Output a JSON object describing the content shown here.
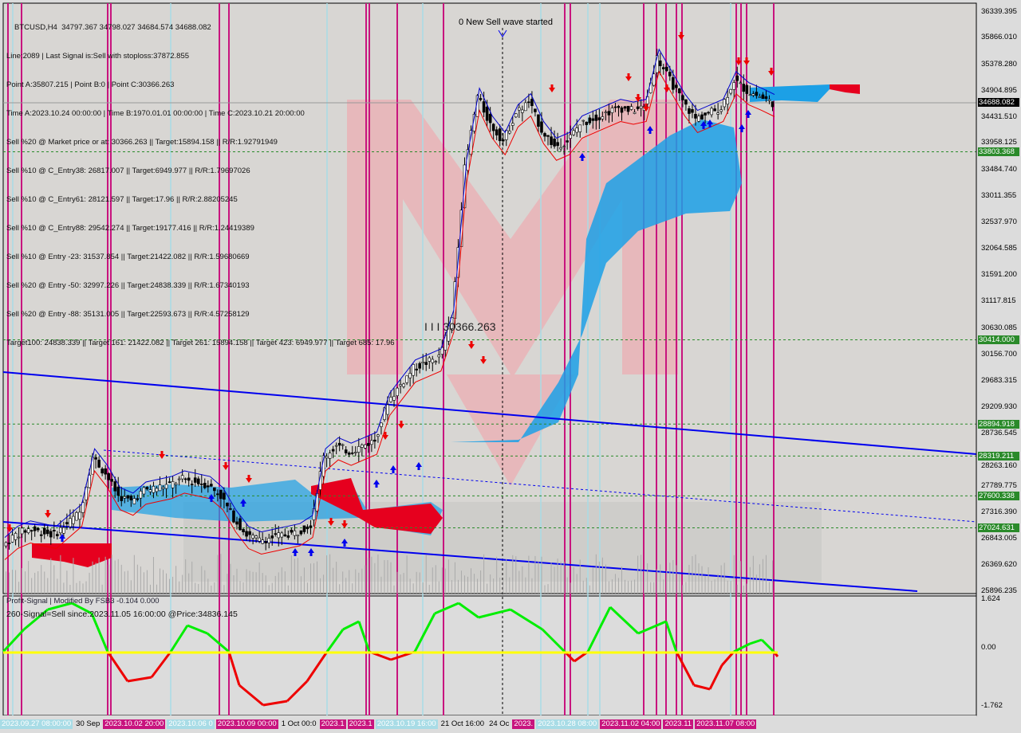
{
  "header": {
    "symbol_line": "BTCUSD,H4  34797.367 34798.027 34684.574 34688.082",
    "lines": [
      "Line:2089 | Last Signal is:Sell with stoploss:37872.855",
      "Point A:35807.215 | Point B:0 | Point C:30366.263",
      "Time A:2023.10.24 00:00:00 | Time B:1970.01.01 00:00:00 | Time C:2023.10.21 20:00:00",
      "Sell %20 @ Market price or at: 30366.263 || Target:15894.158 || R/R:1.92791949",
      "Sell %10 @ C_Entry38: 26817.007 || Target:6949.977 || R/R:1.79697026",
      "Sell %10 @ C_Entry61: 28121.597 || Target:17.96 || R/R:2.88205245",
      "Sell %10 @ C_Entry88: 29542.274 || Target:19177.416 || R/R:1.24419389",
      "Sell %10 @ Entry -23: 31537.854 || Target:21422.082 || R/R:1.59680669",
      "Sell %20 @ Entry -50: 32997.226 || Target:24838.339 || R/R:1.67340193",
      "Sell %20 @ Entry -88: 35131.005 || Target:22593.673 || R/R:4.57258129",
      "Target100: 24838.339 || Target 161: 21422.082 || Target 261: 15894.158 || Target 423: 6949.977 || Target 685: 17.96"
    ]
  },
  "annotations": {
    "wave": "0 New Sell wave started",
    "point_c": "I I I 30366.263"
  },
  "price_axis": [
    "36339.395",
    "35866.010",
    "35378.280",
    "34904.895",
    "34431.510",
    "33958.125",
    "33484.740",
    "33011.355",
    "32537.970",
    "32064.585",
    "31591.200",
    "31117.815",
    "30630.085",
    "30156.700",
    "29683.315",
    "29209.930",
    "28736.545",
    "28263.160",
    "27789.775",
    "27316.390",
    "26843.005",
    "26369.620",
    "25896.235"
  ],
  "current_price": "34688.082",
  "levels": [
    "33803.368",
    "30414.000",
    "28894.918",
    "28319.211",
    "27600.338",
    "27024.631"
  ],
  "indicator": {
    "title": "Profit-Signal | Modified By FSB3 -0.104 0.000",
    "signal": "260-Signal=Sell since:2023.11.05 16:00:00 @Price:34836.145",
    "axis": [
      "1.624",
      "0.00",
      "-1.762"
    ]
  },
  "time_axis": [
    {
      "t": "2023.09.27 08:00:00",
      "bg": "#a8dce6",
      "c": "#fff"
    },
    {
      "t": "30 Sep",
      "bg": "",
      "c": "#000"
    },
    {
      "t": "2023.10.02 20:00",
      "bg": "#c8147e",
      "c": "#fff"
    },
    {
      "t": "2023.10.06 0",
      "bg": "#a8dce6",
      "c": "#fff"
    },
    {
      "t": "2023.10.09 00:00",
      "bg": "#c8147e",
      "c": "#fff"
    },
    {
      "t": "1 Oct 00:0",
      "bg": "",
      "c": "#000"
    },
    {
      "t": "2023.1",
      "bg": "#c8147e",
      "c": "#fff"
    },
    {
      "t": "2023.1",
      "bg": "#c8147e",
      "c": "#fff"
    },
    {
      "t": "2023.10.19 16:00",
      "bg": "#a8dce6",
      "c": "#fff"
    },
    {
      "t": "21 Oct 16:00",
      "bg": "",
      "c": "#000"
    },
    {
      "t": "24 Oc",
      "bg": "",
      "c": "#000"
    },
    {
      "t": "2023.",
      "bg": "#c8147e",
      "c": "#fff"
    },
    {
      "t": "2023.10.28 08:00",
      "bg": "#a8dce6",
      "c": "#fff"
    },
    {
      "t": "2023.11.02 04:00",
      "bg": "#c8147e",
      "c": "#fff"
    },
    {
      "t": "2023.11",
      "bg": "#c8147e",
      "c": "#fff"
    },
    {
      "t": "2023.11.07 08:00",
      "bg": "#c8147e",
      "c": "#fff"
    }
  ],
  "colors": {
    "bg": "#dcdcdc",
    "magenta": "#c8147e",
    "cyan": "#a8dce6",
    "level": "#2a8a2a",
    "trend": "#0000ee",
    "cloud_up": "#1ca0e6",
    "cloud_down": "#e6001e",
    "osc_up": "#00ee00",
    "osc_down": "#ee0000",
    "zero": "#ffff00"
  },
  "chart_data": {
    "type": "candlestick",
    "ylim": [
      25896.235,
      36339.395
    ],
    "close": [
      26700,
      26900,
      27000,
      26950,
      26900,
      27100,
      27300,
      28300,
      28000,
      27600,
      27500,
      27700,
      27750,
      27800,
      27900,
      27850,
      27800,
      27600,
      27200,
      26900,
      26800,
      26850,
      26900,
      26950,
      27100,
      28300,
      28500,
      28400,
      28500,
      28600,
      29300,
      29600,
      29900,
      30000,
      30100,
      30800,
      33500,
      34800,
      34300,
      34000,
      34500,
      34700,
      34200,
      33900,
      34000,
      34300,
      34400,
      34500,
      34600,
      34550,
      34600,
      35500,
      35100,
      34700,
      34400,
      34500,
      34600,
      35100,
      34900,
      34800,
      34688
    ]
  }
}
